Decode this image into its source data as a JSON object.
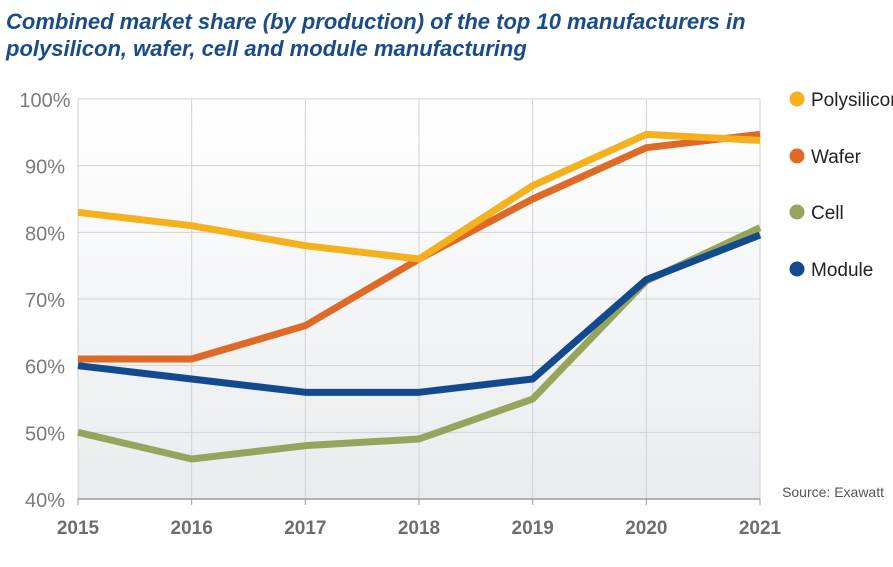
{
  "title_lines": [
    "Combined market share (by production) of the top 10 manufacturers in",
    "polysilicon, wafer, cell and module manufacturing"
  ],
  "source": "Source: Exawatt",
  "chart_data": {
    "type": "line",
    "title": "Combined market share (by production) of the top 10 manufacturers in polysilicon, wafer, cell and module manufacturing",
    "xlabel": "",
    "ylabel": "",
    "x": [
      "2015",
      "2016",
      "2017",
      "2018",
      "2019",
      "2020",
      "2021"
    ],
    "ylim": [
      40,
      100
    ],
    "yticks": [
      40,
      50,
      60,
      70,
      80,
      90,
      100
    ],
    "ytick_labels": [
      "40%",
      "50%",
      "60%",
      "70%",
      "80%",
      "90%",
      "100%"
    ],
    "grid": true,
    "legend_position": "right",
    "series": [
      {
        "name": "Polysilicon",
        "color": "#f5b01e",
        "values": [
          83,
          81,
          78,
          76,
          87,
          94.7,
          93.8
        ]
      },
      {
        "name": "Wafer",
        "color": "#df6a26",
        "values": [
          61,
          61,
          66,
          76,
          85,
          92.7,
          94.7
        ]
      },
      {
        "name": "Cell",
        "color": "#95a55c",
        "values": [
          50,
          46,
          48,
          49,
          55,
          72.7,
          80.7
        ]
      },
      {
        "name": "Module",
        "color": "#13498f",
        "values": [
          60,
          58,
          56,
          56,
          58,
          72.9,
          79.6
        ]
      }
    ]
  }
}
